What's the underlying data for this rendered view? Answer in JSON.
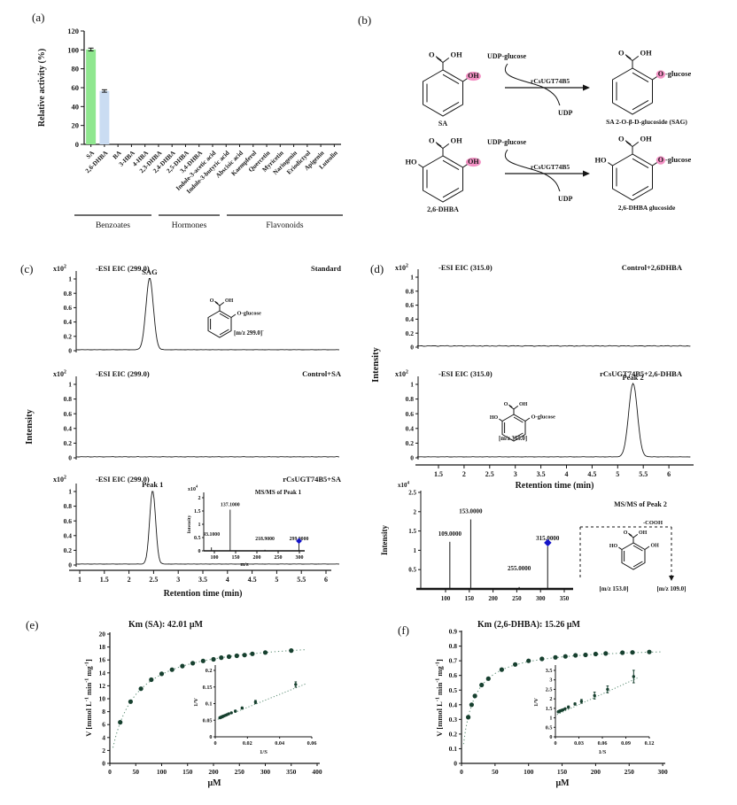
{
  "panel_labels": {
    "a": "(a)",
    "b": "(b)",
    "c": "(c)",
    "d": "(d)",
    "e": "(e)",
    "f": "(f)"
  },
  "colors": {
    "bar_sa": "#8fe78f",
    "bar_dhba": "#cadcf2",
    "trace": "#1a1a1a",
    "point": "#17402f",
    "fit": "#5f8f77",
    "diamond": "#1414c8",
    "highlight": "#f075b5"
  },
  "chart_data": [
    {
      "id": "a",
      "type": "bar",
      "ylabel": "Relative activity (%)",
      "ylim": [
        0,
        120
      ],
      "yticks": [
        0,
        20,
        40,
        60,
        80,
        100,
        120
      ],
      "categories": [
        "SA",
        "2,6-DHBA",
        "BA",
        "3-HBA",
        "4-HBA",
        "2,3-DHBA",
        "2,4-DHBA",
        "2,5-DHBA",
        "3,4-DHBA",
        "Indole-3-acetic acid",
        "Indole-3-butyric acid",
        "Abscisic acid",
        "Kaempferol",
        "Quercetin",
        "Myricetin",
        "Naringenin",
        "Eriodictyol",
        "Apigenin",
        "Luteolin"
      ],
      "values": [
        100.4,
        56.5,
        0,
        0,
        0,
        0,
        0,
        0,
        0,
        0,
        0,
        0,
        0,
        0,
        0,
        0,
        0,
        0,
        0
      ],
      "errors": [
        1.5,
        1.3,
        0,
        0,
        0,
        0,
        0,
        0,
        0,
        0,
        0,
        0,
        0,
        0,
        0,
        0,
        0,
        0,
        0
      ],
      "groups": [
        "Benzoates",
        "Hormones",
        "Flavonoids"
      ]
    },
    {
      "id": "b",
      "type": "diagram",
      "carboxyl": {
        "o": "O",
        "oh": "OH"
      },
      "reactions": [
        {
          "substrate": "SA",
          "left_oh": "",
          "sub_group": "OH",
          "reagent": "UDP-glucose",
          "enzyme": "rCsUGT74B5",
          "byproduct": "UDP",
          "prod_o": "O",
          "prod_suffix": "-glucose",
          "product": "SA 2-O-β-D-glucoside (SAG)"
        },
        {
          "substrate": "2,6-DHBA",
          "left_oh": "HO",
          "sub_group": "OH",
          "reagent": "UDP-glucose",
          "enzyme": "rCsUGT74B5",
          "byproduct": "UDP",
          "prod_o": "O",
          "prod_suffix": "-glucose",
          "product": "2,6-DHBA glucoside"
        }
      ]
    },
    {
      "id": "c",
      "type": "line",
      "ylabel": "Intensity",
      "xlabel": "Retention time (min)",
      "scale_parts": [
        {
          "t": "x10"
        },
        {
          "t": "2",
          "sup": true
        }
      ],
      "yticks": [
        0,
        0.2,
        0.4,
        0.6,
        0.8,
        1
      ],
      "xticks": [
        1,
        1.5,
        2,
        2.5,
        3,
        3.5,
        4,
        4.5,
        5,
        5.5,
        6
      ],
      "traces": [
        {
          "header": "-ESI EIC (299.0)",
          "condition": "Standard",
          "peak": {
            "label": "SAG",
            "t": 2.42,
            "height": 1,
            "width": 0.075
          }
        },
        {
          "header": "-ESI EIC (299.0)",
          "condition": "Control+SA",
          "peak": null
        },
        {
          "header": "-ESI EIC (299.0)",
          "condition": "rCsUGT74B5+SA",
          "peak": {
            "label": "Peak 1",
            "t": 2.48,
            "height": 1,
            "width": 0.06
          }
        }
      ],
      "structure": {
        "o": "O",
        "oh": "OH",
        "o_glucose": "O-glucose",
        "mz_parts": [
          {
            "t": "[m/z 299.0]"
          },
          {
            "t": "-",
            "sup": true
          }
        ]
      },
      "inset_msms": {
        "title": "MS/MS of Peak 1",
        "scale_parts": [
          {
            "t": "x10"
          },
          {
            "t": "4",
            "sup": true
          }
        ],
        "ylabel": "Intensity",
        "xlabel": "m/z",
        "yticks": [
          0,
          0.5,
          1,
          1.5,
          2
        ],
        "xticks": [
          100,
          150,
          200,
          250,
          300
        ],
        "peaks": [
          {
            "mz": 93.1,
            "label": "93.1000",
            "i": 0.13
          },
          {
            "mz": 137.1,
            "label": "137.1000",
            "i": 1.55
          },
          {
            "mz": 218.9,
            "label": "218.9000",
            "i": 0.04
          },
          {
            "mz": 299.0,
            "label": "299.0000",
            "i": 0.27,
            "precursor": true
          }
        ]
      }
    },
    {
      "id": "d",
      "type": "line",
      "ylabel": "Intensity",
      "xlabel": "Retention time (min)",
      "scale_parts": [
        {
          "t": "x10"
        },
        {
          "t": "2",
          "sup": true
        }
      ],
      "yticks": [
        0,
        0.2,
        0.4,
        0.6,
        0.8,
        1
      ],
      "xticks": [
        1.5,
        2,
        2.5,
        3,
        3.5,
        4,
        4.5,
        5,
        5.5,
        6
      ],
      "traces": [
        {
          "header": "-ESI EIC (315.0)",
          "condition": "Control+2,6DHBA",
          "peak": null
        },
        {
          "header": "-ESI EIC (315.0)",
          "condition": "rCsUGT74B5+2,6-DHBA",
          "peak": {
            "label": "Peak 2",
            "t": 5.3,
            "height": 1,
            "width": 0.085
          }
        }
      ],
      "structure": {
        "ho": "HO",
        "o": "O",
        "oh": "OH",
        "o_glucose": "O-glucose",
        "mz": "[m/z 315.0]"
      },
      "msms": {
        "title": "MS/MS of Peak 2",
        "scale_parts": [
          {
            "t": "x10"
          },
          {
            "t": "4",
            "sup": true
          }
        ],
        "ylabel": "Intensity",
        "yticks": [
          0.5,
          1,
          1.5,
          2,
          2.5
        ],
        "xticks": [
          100,
          150,
          200,
          250,
          300,
          350
        ],
        "peaks": [
          {
            "mz": 109,
            "label": "109.0000",
            "i": 1.22
          },
          {
            "mz": 153,
            "label": "153.0000",
            "i": 1.8
          },
          {
            "mz": 255,
            "label": "255.0000",
            "i": 0.05
          },
          {
            "mz": 315,
            "label": "315.0000",
            "i": 1.1,
            "precursor": true
          }
        ],
        "fragment_labels": {
          "cooh": "-COOH",
          "mz153": "[m/z 153.0]",
          "mz109": "[m/z 109.0]",
          "ho": "HO",
          "oh": "OH"
        }
      }
    },
    {
      "id": "e",
      "type": "scatter",
      "title": "Km (SA): 42.01 μM",
      "ylabel_parts": [
        {
          "t": "V [mmol L"
        },
        {
          "t": "-1",
          "sup": true
        },
        {
          "t": " min"
        },
        {
          "t": "-1",
          "sup": true
        },
        {
          "t": " mg"
        },
        {
          "t": "-1",
          "sup": true
        },
        {
          "t": "]"
        }
      ],
      "xlabel": "μM",
      "xlim": [
        0,
        400
      ],
      "ylim": [
        0,
        20
      ],
      "xticks": [
        0,
        50,
        100,
        150,
        200,
        250,
        300,
        350,
        400
      ],
      "yticks": [
        0,
        2,
        4,
        6,
        8,
        10,
        12,
        14,
        16,
        18,
        20
      ],
      "vmax": 19.55,
      "km": 42.01,
      "points": [
        [
          20,
          6.35
        ],
        [
          40,
          9.55
        ],
        [
          60,
          11.55
        ],
        [
          80,
          12.95
        ],
        [
          100,
          13.85
        ],
        [
          120,
          14.5
        ],
        [
          140,
          15.05
        ],
        [
          160,
          15.5
        ],
        [
          180,
          15.85
        ],
        [
          200,
          16.1
        ],
        [
          215,
          16.35
        ],
        [
          230,
          16.5
        ],
        [
          245,
          16.65
        ],
        [
          260,
          16.75
        ],
        [
          275,
          16.95
        ],
        [
          300,
          17.15
        ],
        [
          350,
          17.45
        ]
      ],
      "inset": {
        "xlabel": "1/S",
        "ylabel": "1/V",
        "xlim": [
          0,
          0.06
        ],
        "ylim": [
          0,
          0.2
        ],
        "xticks": [
          0,
          0.02,
          0.04,
          0.06
        ],
        "yticks": [
          0,
          0.05,
          0.1,
          0.15,
          0.2
        ],
        "fit": [
          [
            0.0015,
            0.0525
          ],
          [
            0.056,
            0.159
          ]
        ]
      }
    },
    {
      "id": "f",
      "type": "scatter",
      "title": "Km (2,6-DHBA): 15.26 μM",
      "ylabel_parts": [
        {
          "t": "V [mmol L"
        },
        {
          "t": "-1",
          "sup": true
        },
        {
          "t": " min"
        },
        {
          "t": "-1",
          "sup": true
        },
        {
          "t": " mg"
        },
        {
          "t": "-1",
          "sup": true
        },
        {
          "t": "]"
        }
      ],
      "xlabel": "μM",
      "xlim": [
        0,
        300
      ],
      "ylim": [
        0,
        0.9
      ],
      "xticks": [
        0,
        50,
        100,
        150,
        200,
        250,
        300
      ],
      "yticks": [
        0,
        0.1,
        0.2,
        0.3,
        0.4,
        0.5,
        0.6,
        0.7,
        0.8,
        0.9
      ],
      "vmax": 0.8,
      "km": 15.26,
      "points": [
        [
          10,
          0.315
        ],
        [
          15,
          0.4
        ],
        [
          20,
          0.46
        ],
        [
          30,
          0.535
        ],
        [
          40,
          0.578
        ],
        [
          60,
          0.64
        ],
        [
          80,
          0.675
        ],
        [
          100,
          0.7
        ],
        [
          120,
          0.713
        ],
        [
          140,
          0.723
        ],
        [
          155,
          0.73
        ],
        [
          170,
          0.737
        ],
        [
          185,
          0.74
        ],
        [
          200,
          0.746
        ],
        [
          215,
          0.75
        ],
        [
          240,
          0.755
        ],
        [
          255,
          0.757
        ],
        [
          280,
          0.76
        ]
      ],
      "inset": {
        "xlabel": "1/S",
        "ylabel": "1/V",
        "xlim": [
          0,
          0.12
        ],
        "ylim": [
          0,
          3.5
        ],
        "xticks": [
          0,
          0.03,
          0.06,
          0.09,
          0.12
        ],
        "yticks": [
          0,
          0.5,
          1,
          1.5,
          2,
          2.5,
          3,
          3.5
        ],
        "fit": [
          [
            0.002,
            1.17
          ],
          [
            0.106,
            3.12
          ]
        ]
      }
    }
  ]
}
